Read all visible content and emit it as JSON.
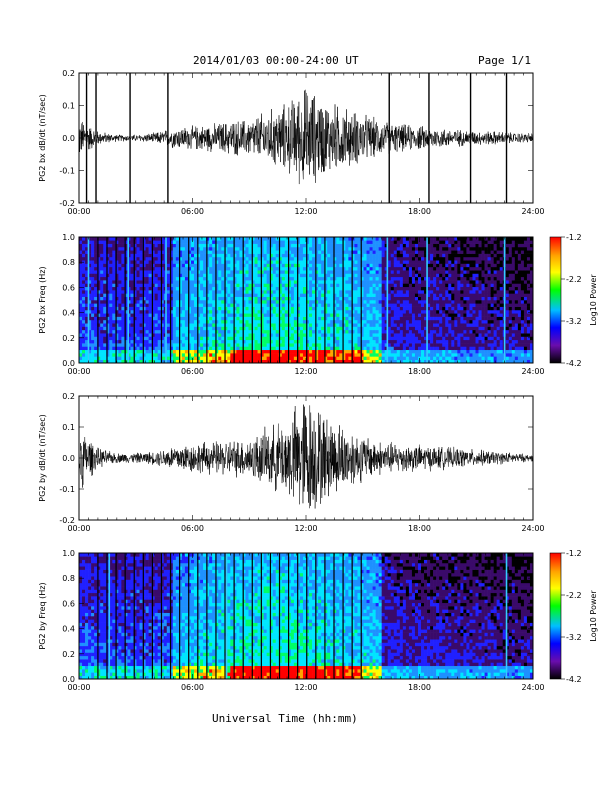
{
  "header": {
    "date_range": "2014/01/03  00:00-24:00 UT",
    "page": "Page 1/1"
  },
  "x_axis_title": "Universal Time (hh:mm)",
  "colorbar": {
    "label": "Log10 Power",
    "ticks": [
      "-1.2",
      "-2.2",
      "-3.2",
      "-4.2"
    ],
    "colors": [
      "#ff0000",
      "#ffa500",
      "#ffff00",
      "#00ff00",
      "#00bfff",
      "#0000ff",
      "#6a0dad",
      "#000000"
    ]
  },
  "chart_data": [
    {
      "type": "line",
      "ylabel": "PG2 bx dB/dt (nT/sec)",
      "x_ticks": [
        "00:00",
        "06:00",
        "12:00",
        "18:00",
        "24:00"
      ],
      "y_ticks": [
        "0.2",
        "0.1",
        "0.0",
        "-0.1",
        "-0.2"
      ],
      "xlim": [
        0,
        24
      ],
      "ylim": [
        -0.2,
        0.2
      ],
      "series": [
        {
          "x": [
            0,
            1,
            2,
            3,
            4,
            5,
            6,
            7,
            8,
            9,
            10,
            11,
            12,
            13,
            14,
            15,
            16,
            17,
            18,
            19,
            20,
            21,
            22,
            23,
            24
          ],
          "y": [
            0.06,
            0.02,
            0.01,
            0.01,
            0.015,
            0.03,
            0.035,
            0.04,
            0.05,
            0.055,
            0.08,
            0.1,
            0.15,
            0.11,
            0.09,
            0.07,
            0.05,
            0.04,
            0.035,
            0.03,
            0.025,
            0.02,
            0.02,
            0.015,
            0.015
          ]
        }
      ],
      "gaps": [
        0.4,
        0.9,
        2.7,
        4.7,
        16.4,
        18.5,
        20.7,
        22.6
      ]
    },
    {
      "type": "heatmap",
      "ylabel": "PG2 bx Freq (Hz)",
      "x_ticks": [
        "00:00",
        "06:00",
        "12:00",
        "18:00",
        "24:00"
      ],
      "y_ticks": [
        "1.0",
        "0.8",
        "0.6",
        "0.4",
        "0.2",
        "0.0"
      ],
      "xlim": [
        0,
        24
      ],
      "ylim": [
        0,
        1.0
      ],
      "gaps": [
        0.4,
        0.9,
        2.7,
        4.7,
        16.4,
        18.5,
        20.7,
        22.6
      ],
      "bright_lines": [
        0.5,
        2.6,
        4.6,
        16.3,
        18.4,
        22.5
      ]
    },
    {
      "type": "line",
      "ylabel": "PG2 by dB/dt (nT/sec)",
      "x_ticks": [
        "00:00",
        "06:00",
        "12:00",
        "18:00",
        "24:00"
      ],
      "y_ticks": [
        "0.2",
        "0.1",
        "0.0",
        "-0.1",
        "-0.2"
      ],
      "xlim": [
        0,
        24
      ],
      "ylim": [
        -0.2,
        0.2
      ],
      "series": [
        {
          "x": [
            0,
            1,
            2,
            3,
            4,
            5,
            6,
            7,
            8,
            9,
            10,
            11,
            12,
            13,
            14,
            15,
            16,
            17,
            18,
            19,
            20,
            21,
            22,
            23,
            24
          ],
          "y": [
            0.1,
            0.03,
            0.015,
            0.015,
            0.02,
            0.04,
            0.045,
            0.05,
            0.055,
            0.06,
            0.09,
            0.12,
            0.2,
            0.13,
            0.1,
            0.07,
            0.05,
            0.045,
            0.04,
            0.035,
            0.03,
            0.025,
            0.02,
            0.015,
            0.01
          ]
        }
      ],
      "gaps": []
    },
    {
      "type": "heatmap",
      "ylabel": "PG2 by Freq (Hz)",
      "x_ticks": [
        "00:00",
        "06:00",
        "12:00",
        "18:00",
        "24:00"
      ],
      "y_ticks": [
        "1.0",
        "0.8",
        "0.6",
        "0.4",
        "0.2",
        "0.0"
      ],
      "xlim": [
        0,
        24
      ],
      "ylim": [
        0,
        1.0
      ],
      "gaps": [],
      "bright_lines": [
        1.6,
        7.8,
        22.6
      ]
    }
  ]
}
